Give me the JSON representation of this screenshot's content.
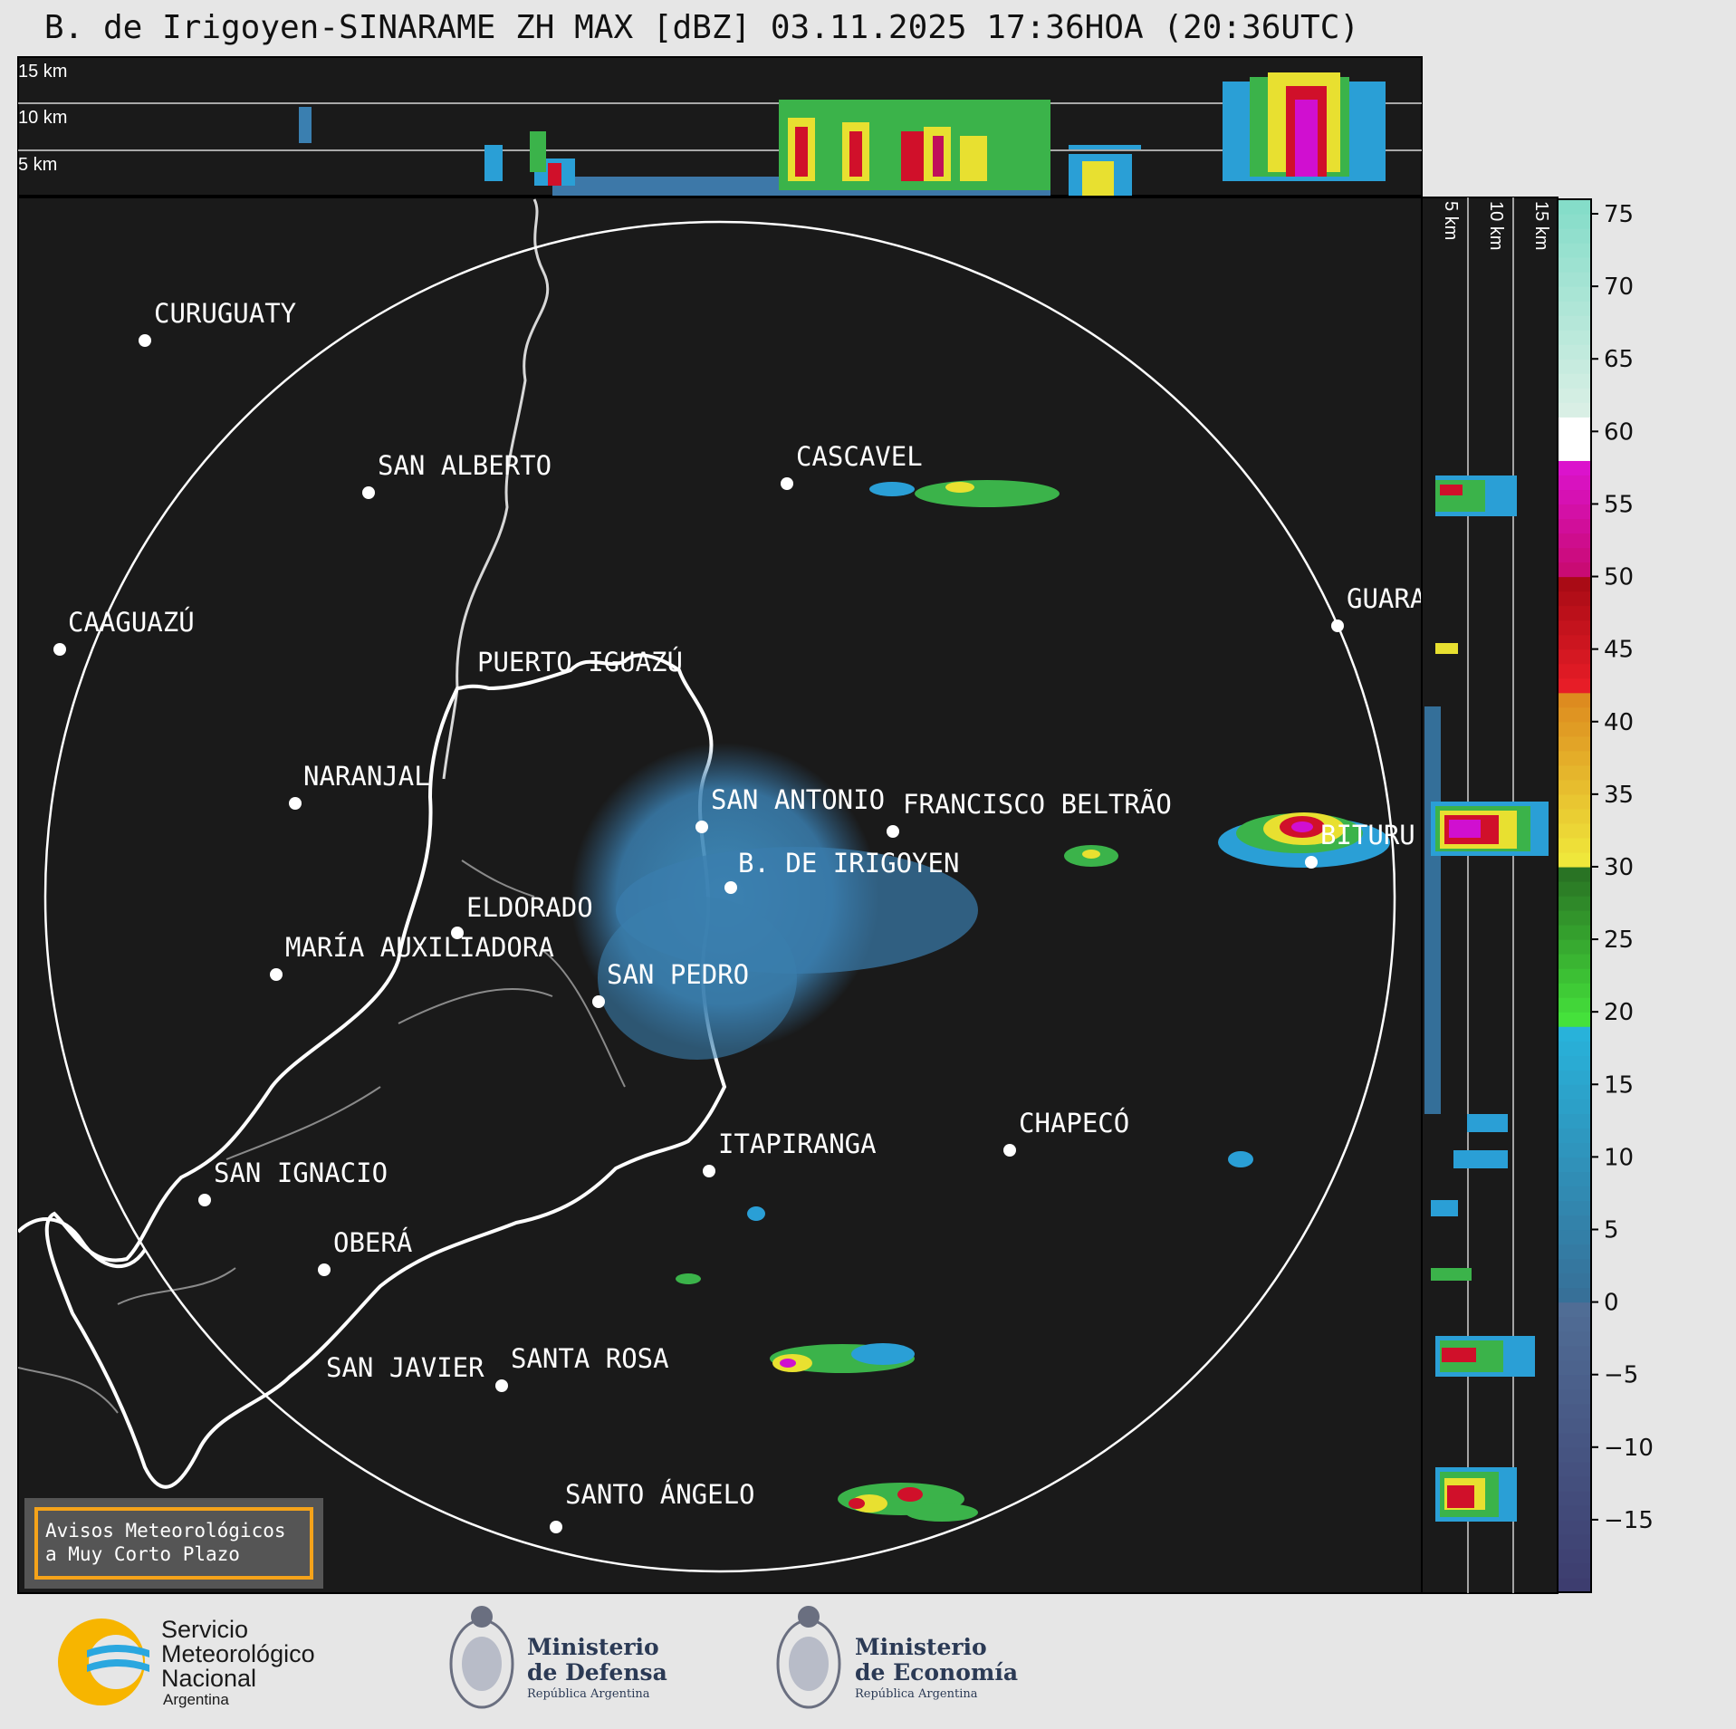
{
  "title": "B. de Irigoyen-SINARAME ZH MAX [dBZ] 03.11.2025 17:36HOA (20:36UTC)",
  "top_panel": {
    "height_labels": [
      "15 km",
      "10 km",
      "5 km"
    ]
  },
  "side_panel": {
    "height_labels": [
      "5 km",
      "10 km",
      "15 km"
    ]
  },
  "colorbar": {
    "unit": "dBZ",
    "ticks": [
      "75",
      "70",
      "65",
      "60",
      "55",
      "50",
      "45",
      "40",
      "35",
      "30",
      "25",
      "20",
      "15",
      "10",
      "5",
      "0",
      "−5",
      "−10",
      "−15"
    ],
    "tick_values": [
      75,
      70,
      65,
      60,
      55,
      50,
      45,
      40,
      35,
      30,
      25,
      20,
      15,
      10,
      5,
      0,
      -5,
      -10,
      -15
    ],
    "range": [
      -20,
      76
    ]
  },
  "map": {
    "background": "#1a1a1a",
    "radar_site": "B. DE IRIGOYEN",
    "cities": [
      {
        "name": "CURUGUATY"
      },
      {
        "name": "SAN ALBERTO"
      },
      {
        "name": "CASCAVEL"
      },
      {
        "name": "CAAGUAZÚ"
      },
      {
        "name": "GUARA"
      },
      {
        "name": "PUERTO IGUAZÚ"
      },
      {
        "name": "NARANJAL"
      },
      {
        "name": "SAN ANTONIO"
      },
      {
        "name": "FRANCISCO BELTRÃO"
      },
      {
        "name": "BITURU"
      },
      {
        "name": "B. DE IRIGOYEN"
      },
      {
        "name": "ELDORADO"
      },
      {
        "name": "MARÍA AUXILIADORA"
      },
      {
        "name": "SAN PEDRO"
      },
      {
        "name": "CHAPECÓ"
      },
      {
        "name": "ITAPIRANGA"
      },
      {
        "name": "SAN IGNACIO"
      },
      {
        "name": "OBERÁ"
      },
      {
        "name": "SAN JAVIER"
      },
      {
        "name": "SANTA ROSA"
      },
      {
        "name": "SANTO ÁNGELO"
      }
    ]
  },
  "warning_box": {
    "line1": "Avisos Meteorológicos",
    "line2": "a Muy Corto Plazo",
    "border_color": "#f5a31a"
  },
  "footer": {
    "smn": {
      "line1": "Servicio",
      "line2": "Meteorológico",
      "line3": "Nacional",
      "line4": "Argentina"
    },
    "defensa": {
      "line1": "Ministerio",
      "line2": "de Defensa",
      "line3": "República Argentina"
    },
    "economia": {
      "line1": "Ministerio",
      "line2": "de Economía",
      "line3": "República Argentina"
    }
  }
}
